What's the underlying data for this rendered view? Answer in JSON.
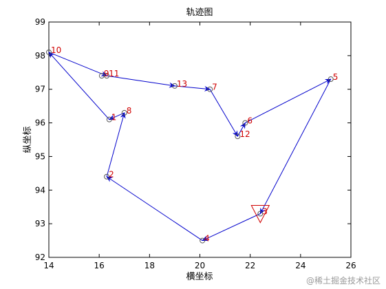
{
  "chart_data": {
    "type": "line",
    "title": "轨迹图",
    "xlabel": "横坐标",
    "ylabel": "纵坐标",
    "xlim": [
      14,
      26
    ],
    "ylim": [
      92,
      99
    ],
    "xticks": [
      14,
      16,
      18,
      20,
      22,
      24,
      26
    ],
    "yticks": [
      92,
      93,
      94,
      95,
      96,
      97,
      98,
      99
    ],
    "grid": false,
    "colors": {
      "path": "#0000cc",
      "label": "#d00000",
      "marker": "#555555",
      "start_marker": "#d00000"
    },
    "points": [
      {
        "label": "1",
        "x": 16.4,
        "y": 96.1
      },
      {
        "label": "2",
        "x": 16.3,
        "y": 94.4
      },
      {
        "label": "3",
        "x": 22.4,
        "y": 93.3
      },
      {
        "label": "4",
        "x": 20.1,
        "y": 92.5
      },
      {
        "label": "5",
        "x": 25.2,
        "y": 97.3
      },
      {
        "label": "6",
        "x": 21.8,
        "y": 96.0
      },
      {
        "label": "7",
        "x": 20.4,
        "y": 97.0
      },
      {
        "label": "8",
        "x": 17.0,
        "y": 96.3
      },
      {
        "label": "9",
        "x": 16.1,
        "y": 97.4
      },
      {
        "label": "10",
        "x": 14.0,
        "y": 98.1
      },
      {
        "label": "11",
        "x": 16.3,
        "y": 97.4
      },
      {
        "label": "12",
        "x": 21.5,
        "y": 95.6
      },
      {
        "label": "13",
        "x": 19.0,
        "y": 97.1
      }
    ],
    "path_order": [
      "3",
      "4",
      "2",
      "8",
      "1",
      "10",
      "11",
      "13",
      "7",
      "12",
      "6",
      "5",
      "3"
    ],
    "start_label": "3"
  },
  "watermark": "@稀土掘金技术社区"
}
